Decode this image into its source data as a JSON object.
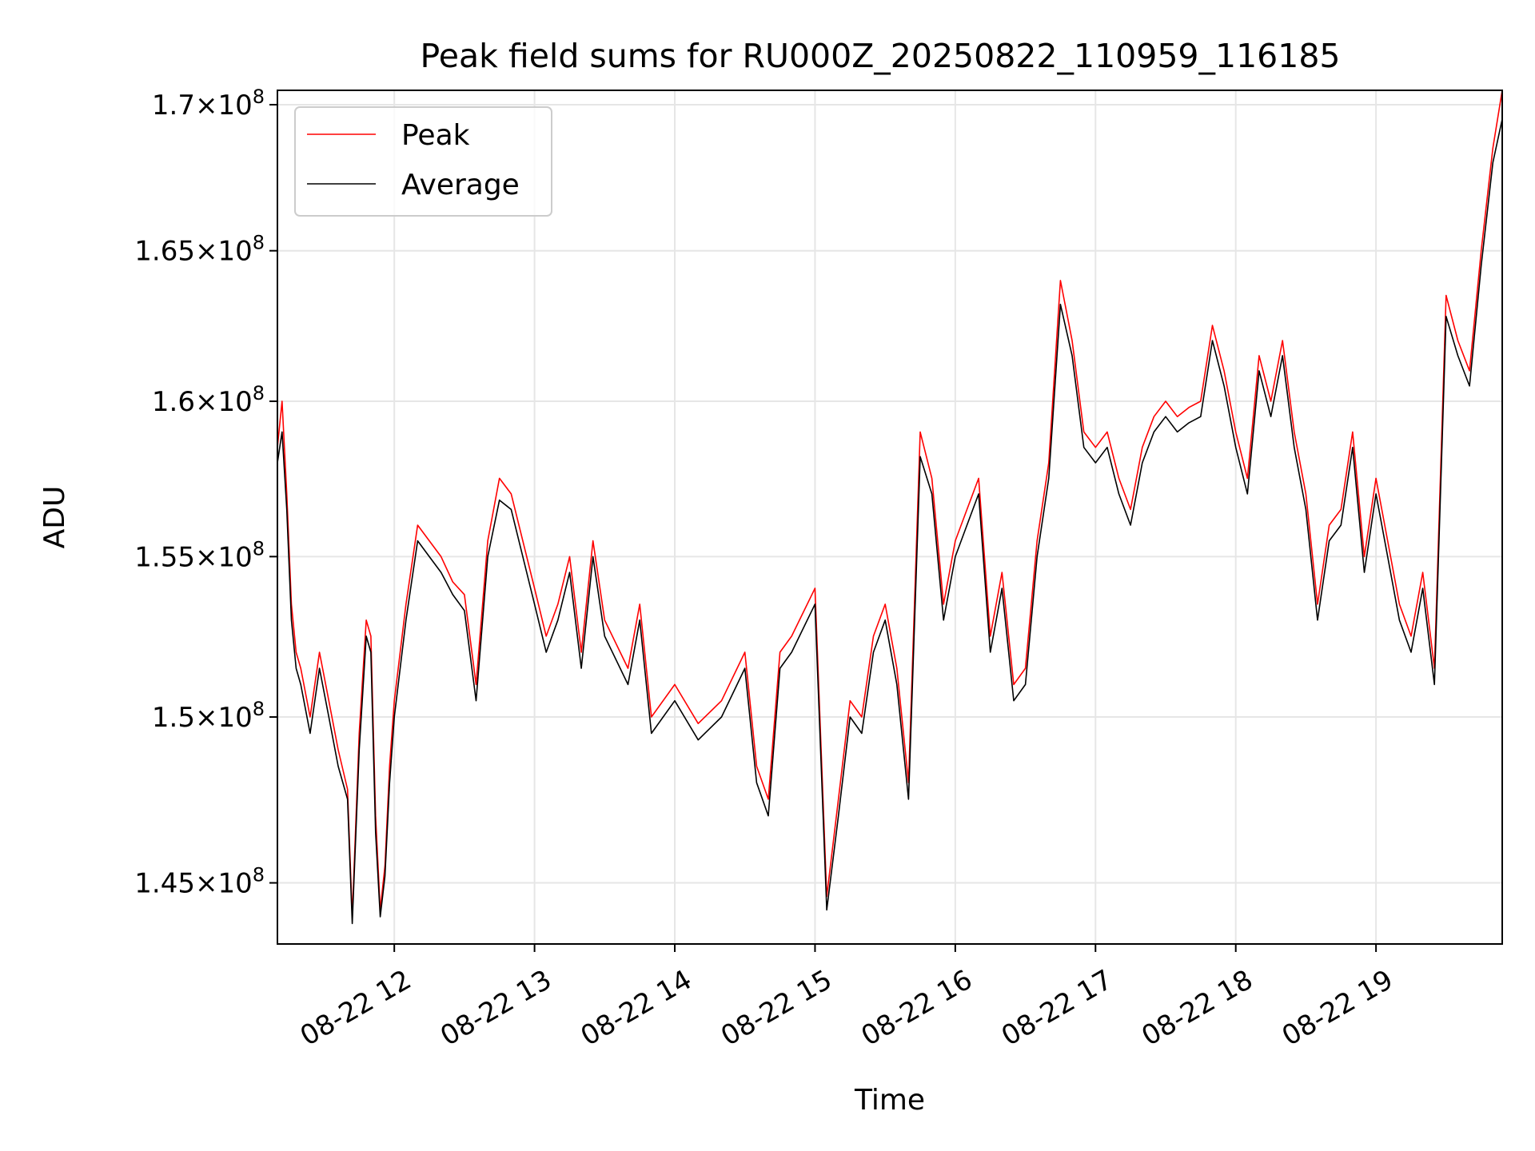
{
  "chart_data": {
    "type": "line",
    "title": "Peak field sums for RU000Z_20250822_110959_116185",
    "xlabel": "Time",
    "ylabel": "ADU",
    "yscale": "log",
    "grid": true,
    "legend": "upper left",
    "xlim": [
      "08-22 11:10",
      "08-22 19:54"
    ],
    "ylim": [
      143200000,
      170500000
    ],
    "x_ticks": [
      "08-22 12",
      "08-22 13",
      "08-22 14",
      "08-22 15",
      "08-22 16",
      "08-22 17",
      "08-22 18",
      "08-22 19"
    ],
    "y_ticks": [
      {
        "value": 145000000,
        "mantissa": "1.45"
      },
      {
        "value": 150000000,
        "mantissa": "1.5"
      },
      {
        "value": 155000000,
        "mantissa": "1.55"
      },
      {
        "value": 160000000,
        "mantissa": "1.6"
      },
      {
        "value": 165000000,
        "mantissa": "1.65"
      },
      {
        "value": 170000000,
        "mantissa": "1.7"
      }
    ],
    "series": [
      {
        "name": "Peak",
        "color": "#ff0000",
        "x": [
          "08-22 11:10",
          "08-22 11:12",
          "08-22 11:14",
          "08-22 11:16",
          "08-22 11:18",
          "08-22 11:20",
          "08-22 11:24",
          "08-22 11:28",
          "08-22 11:32",
          "08-22 11:36",
          "08-22 11:40",
          "08-22 11:42",
          "08-22 11:45",
          "08-22 11:48",
          "08-22 11:50",
          "08-22 11:52",
          "08-22 11:54",
          "08-22 11:56",
          "08-22 11:58",
          "08-22 12:00",
          "08-22 12:05",
          "08-22 12:10",
          "08-22 12:15",
          "08-22 12:20",
          "08-22 12:25",
          "08-22 12:30",
          "08-22 12:35",
          "08-22 12:40",
          "08-22 12:45",
          "08-22 12:50",
          "08-22 13:00",
          "08-22 13:05",
          "08-22 13:10",
          "08-22 13:15",
          "08-22 13:20",
          "08-22 13:25",
          "08-22 13:30",
          "08-22 13:40",
          "08-22 13:45",
          "08-22 13:50",
          "08-22 14:00",
          "08-22 14:10",
          "08-22 14:20",
          "08-22 14:30",
          "08-22 14:35",
          "08-22 14:40",
          "08-22 14:45",
          "08-22 14:50",
          "08-22 15:00",
          "08-22 15:05",
          "08-22 15:10",
          "08-22 15:15",
          "08-22 15:20",
          "08-22 15:25",
          "08-22 15:30",
          "08-22 15:35",
          "08-22 15:40",
          "08-22 15:45",
          "08-22 15:50",
          "08-22 15:55",
          "08-22 16:00",
          "08-22 16:05",
          "08-22 16:10",
          "08-22 16:15",
          "08-22 16:20",
          "08-22 16:25",
          "08-22 16:30",
          "08-22 16:35",
          "08-22 16:40",
          "08-22 16:45",
          "08-22 16:50",
          "08-22 16:55",
          "08-22 17:00",
          "08-22 17:05",
          "08-22 17:10",
          "08-22 17:15",
          "08-22 17:20",
          "08-22 17:25",
          "08-22 17:30",
          "08-22 17:35",
          "08-22 17:40",
          "08-22 17:45",
          "08-22 17:50",
          "08-22 17:55",
          "08-22 18:00",
          "08-22 18:05",
          "08-22 18:10",
          "08-22 18:15",
          "08-22 18:20",
          "08-22 18:25",
          "08-22 18:30",
          "08-22 18:35",
          "08-22 18:40",
          "08-22 18:45",
          "08-22 18:50",
          "08-22 18:55",
          "08-22 19:00",
          "08-22 19:05",
          "08-22 19:10",
          "08-22 19:15",
          "08-22 19:20",
          "08-22 19:25",
          "08-22 19:30",
          "08-22 19:35",
          "08-22 19:40",
          "08-22 19:45",
          "08-22 19:50",
          "08-22 19:54"
        ],
        "y": [
          158500000,
          160000000,
          157000000,
          153500000,
          152000000,
          151500000,
          150000000,
          152000000,
          150500000,
          149000000,
          147800000,
          144000000,
          149500000,
          153000000,
          152500000,
          147000000,
          144200000,
          145500000,
          148500000,
          150500000,
          153500000,
          156000000,
          155500000,
          155000000,
          154200000,
          153800000,
          151000000,
          155500000,
          157500000,
          157000000,
          154000000,
          152500000,
          153500000,
          155000000,
          152000000,
          155500000,
          153000000,
          151500000,
          153500000,
          150000000,
          151000000,
          149800000,
          150500000,
          152000000,
          148500000,
          147500000,
          152000000,
          152500000,
          154000000,
          144600000,
          147500000,
          150500000,
          150000000,
          152500000,
          153500000,
          151500000,
          148000000,
          159000000,
          157500000,
          153500000,
          155500000,
          156500000,
          157500000,
          152500000,
          154500000,
          151000000,
          151500000,
          155500000,
          158000000,
          164000000,
          162000000,
          159000000,
          158500000,
          159000000,
          157500000,
          156500000,
          158500000,
          159500000,
          160000000,
          159500000,
          159800000,
          160000000,
          162500000,
          161000000,
          159000000,
          157500000,
          161500000,
          160000000,
          162000000,
          159000000,
          157000000,
          153500000,
          156000000,
          156500000,
          159000000,
          155000000,
          157500000,
          155500000,
          153500000,
          152500000,
          154500000,
          151500000,
          163500000,
          162000000,
          161000000,
          165000000,
          168500000,
          170500000
        ]
      },
      {
        "name": "Average",
        "color": "#000000",
        "x": [
          "08-22 11:10",
          "08-22 11:12",
          "08-22 11:14",
          "08-22 11:16",
          "08-22 11:18",
          "08-22 11:20",
          "08-22 11:24",
          "08-22 11:28",
          "08-22 11:32",
          "08-22 11:36",
          "08-22 11:40",
          "08-22 11:42",
          "08-22 11:45",
          "08-22 11:48",
          "08-22 11:50",
          "08-22 11:52",
          "08-22 11:54",
          "08-22 11:56",
          "08-22 11:58",
          "08-22 12:00",
          "08-22 12:05",
          "08-22 12:10",
          "08-22 12:15",
          "08-22 12:20",
          "08-22 12:25",
          "08-22 12:30",
          "08-22 12:35",
          "08-22 12:40",
          "08-22 12:45",
          "08-22 12:50",
          "08-22 13:00",
          "08-22 13:05",
          "08-22 13:10",
          "08-22 13:15",
          "08-22 13:20",
          "08-22 13:25",
          "08-22 13:30",
          "08-22 13:40",
          "08-22 13:45",
          "08-22 13:50",
          "08-22 14:00",
          "08-22 14:10",
          "08-22 14:20",
          "08-22 14:30",
          "08-22 14:35",
          "08-22 14:40",
          "08-22 14:45",
          "08-22 14:50",
          "08-22 15:00",
          "08-22 15:05",
          "08-22 15:10",
          "08-22 15:15",
          "08-22 15:20",
          "08-22 15:25",
          "08-22 15:30",
          "08-22 15:35",
          "08-22 15:40",
          "08-22 15:45",
          "08-22 15:50",
          "08-22 15:55",
          "08-22 16:00",
          "08-22 16:05",
          "08-22 16:10",
          "08-22 16:15",
          "08-22 16:20",
          "08-22 16:25",
          "08-22 16:30",
          "08-22 16:35",
          "08-22 16:40",
          "08-22 16:45",
          "08-22 16:50",
          "08-22 16:55",
          "08-22 17:00",
          "08-22 17:05",
          "08-22 17:10",
          "08-22 17:15",
          "08-22 17:20",
          "08-22 17:25",
          "08-22 17:30",
          "08-22 17:35",
          "08-22 17:40",
          "08-22 17:45",
          "08-22 17:50",
          "08-22 17:55",
          "08-22 18:00",
          "08-22 18:05",
          "08-22 18:10",
          "08-22 18:15",
          "08-22 18:20",
          "08-22 18:25",
          "08-22 18:30",
          "08-22 18:35",
          "08-22 18:40",
          "08-22 18:45",
          "08-22 18:50",
          "08-22 18:55",
          "08-22 19:00",
          "08-22 19:05",
          "08-22 19:10",
          "08-22 19:15",
          "08-22 19:20",
          "08-22 19:25",
          "08-22 19:30",
          "08-22 19:35",
          "08-22 19:40",
          "08-22 19:45",
          "08-22 19:50",
          "08-22 19:54"
        ],
        "y": [
          158000000,
          159000000,
          156500000,
          153000000,
          151500000,
          151000000,
          149500000,
          151500000,
          150000000,
          148500000,
          147500000,
          143800000,
          149000000,
          152500000,
          152000000,
          146500000,
          144000000,
          145200000,
          148000000,
          150000000,
          153000000,
          155500000,
          155000000,
          154500000,
          153800000,
          153300000,
          150500000,
          155000000,
          156800000,
          156500000,
          153500000,
          152000000,
          153000000,
          154500000,
          151500000,
          155000000,
          152500000,
          151000000,
          153000000,
          149500000,
          150500000,
          149300000,
          150000000,
          151500000,
          148000000,
          147000000,
          151500000,
          152000000,
          153500000,
          144200000,
          147000000,
          150000000,
          149500000,
          152000000,
          153000000,
          151000000,
          147500000,
          158200000,
          157000000,
          153000000,
          155000000,
          156000000,
          157000000,
          152000000,
          154000000,
          150500000,
          151000000,
          155000000,
          157500000,
          163200000,
          161500000,
          158500000,
          158000000,
          158500000,
          157000000,
          156000000,
          158000000,
          159000000,
          159500000,
          159000000,
          159300000,
          159500000,
          162000000,
          160500000,
          158500000,
          157000000,
          161000000,
          159500000,
          161500000,
          158500000,
          156500000,
          153000000,
          155500000,
          156000000,
          158500000,
          154500000,
          157000000,
          155000000,
          153000000,
          152000000,
          154000000,
          151000000,
          162800000,
          161500000,
          160500000,
          164500000,
          168000000,
          169500000
        ]
      }
    ]
  }
}
